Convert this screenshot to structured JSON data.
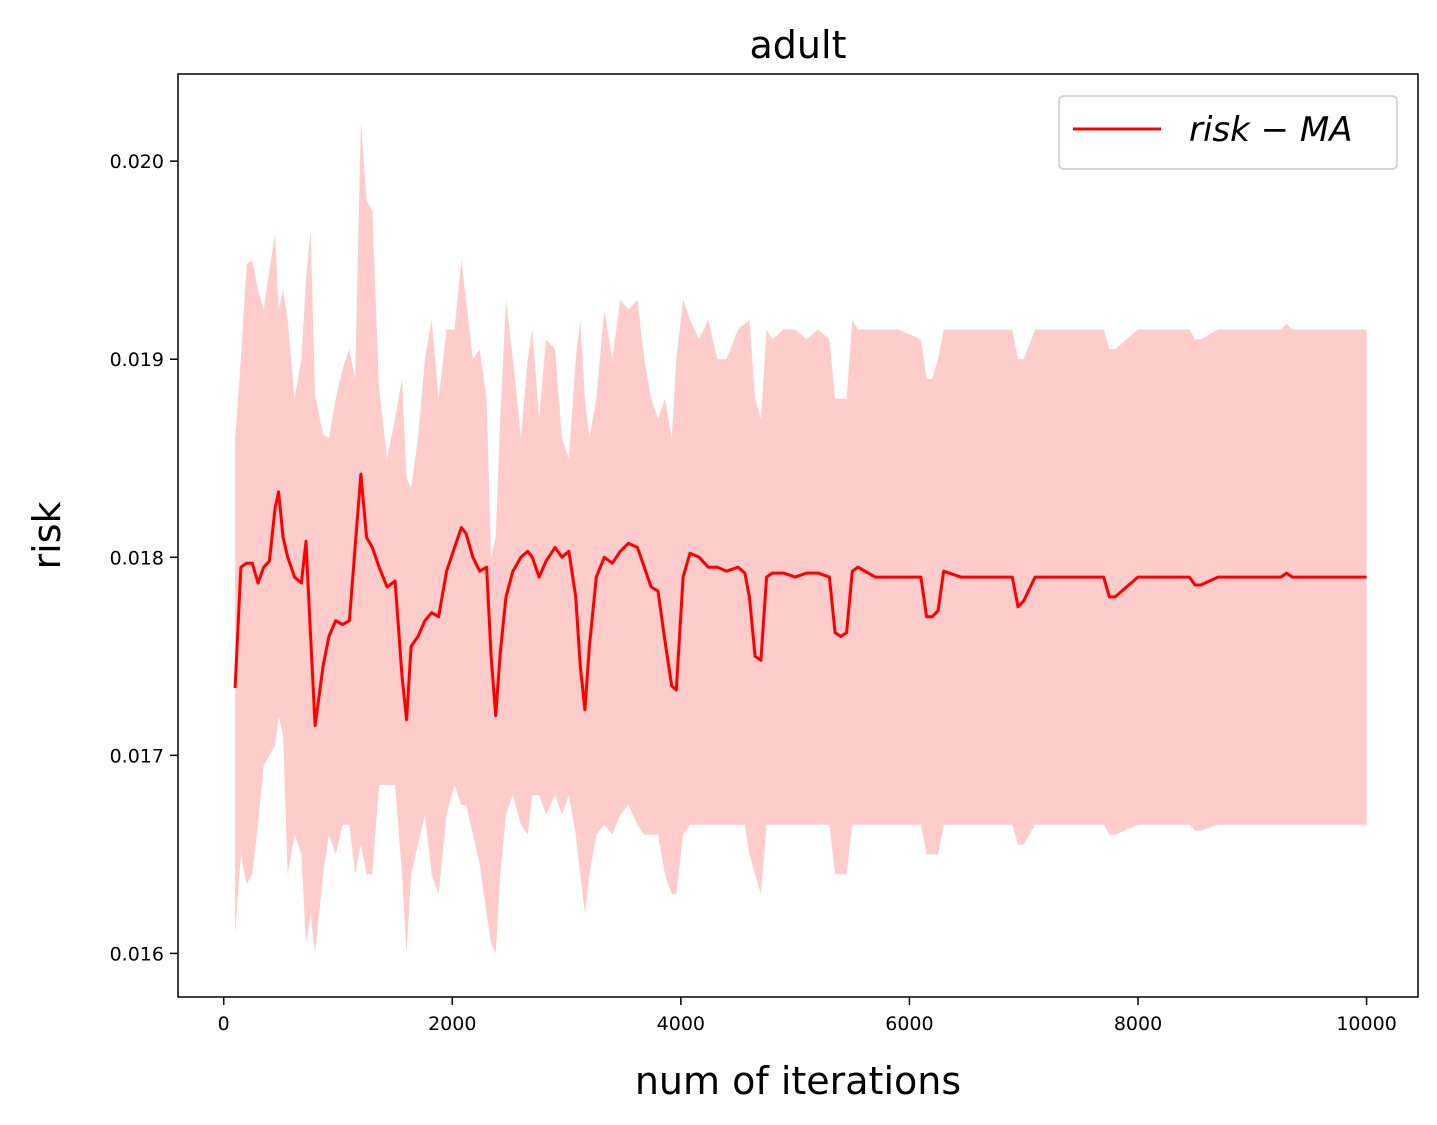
{
  "chart_data": {
    "type": "line",
    "title": "adult",
    "xlabel": "num of iterations",
    "ylabel": "risk",
    "xlim": [
      -400,
      10450
    ],
    "ylim": [
      0.01578,
      0.02044
    ],
    "xticks": [
      0,
      2000,
      4000,
      6000,
      8000,
      10000
    ],
    "xtick_labels": [
      "0",
      "2000",
      "4000",
      "6000",
      "8000",
      "10000"
    ],
    "yticks": [
      0.016,
      0.017,
      0.018,
      0.019,
      0.02
    ],
    "ytick_labels": [
      "0.016",
      "0.017",
      "0.018",
      "0.019",
      "0.020"
    ],
    "grid": false,
    "legend_position": "top-right",
    "series": [
      {
        "name": "risk − MA",
        "legend_label": "risk − MA",
        "color": "#ff0000",
        "band_color": "#ffcccc",
        "x": [
          100,
          150,
          200,
          250,
          300,
          350,
          400,
          450,
          480,
          520,
          560,
          620,
          680,
          720,
          760,
          800,
          870,
          920,
          980,
          1040,
          1100,
          1150,
          1200,
          1250,
          1300,
          1360,
          1430,
          1500,
          1560,
          1600,
          1640,
          1700,
          1760,
          1820,
          1880,
          1950,
          2020,
          2080,
          2120,
          2180,
          2240,
          2300,
          2340,
          2380,
          2420,
          2470,
          2530,
          2600,
          2660,
          2700,
          2760,
          2820,
          2900,
          2960,
          3020,
          3080,
          3120,
          3160,
          3200,
          3260,
          3330,
          3400,
          3470,
          3540,
          3620,
          3680,
          3740,
          3800,
          3860,
          3920,
          3960,
          4020,
          4080,
          4160,
          4240,
          4320,
          4400,
          4500,
          4560,
          4600,
          4650,
          4700,
          4750,
          4800,
          4900,
          5000,
          5100,
          5200,
          5300,
          5350,
          5400,
          5450,
          5500,
          5550,
          5700,
          5900,
          6100,
          6150,
          6200,
          6250,
          6300,
          6450,
          6700,
          6900,
          6950,
          7000,
          7100,
          7300,
          7600,
          7700,
          7750,
          7800,
          8000,
          8300,
          8450,
          8500,
          8550,
          8700,
          9000,
          9250,
          9300,
          9350,
          9500,
          10000
        ],
        "y": [
          0.01734,
          0.01795,
          0.01797,
          0.01797,
          0.01787,
          0.01795,
          0.01798,
          0.01825,
          0.01833,
          0.0181,
          0.018,
          0.0179,
          0.01787,
          0.01808,
          0.0176,
          0.01715,
          0.01745,
          0.0176,
          0.01768,
          0.01766,
          0.01768,
          0.01805,
          0.01842,
          0.0181,
          0.01805,
          0.01795,
          0.01785,
          0.01788,
          0.0174,
          0.01718,
          0.01755,
          0.0176,
          0.01768,
          0.01772,
          0.0177,
          0.01793,
          0.01805,
          0.01815,
          0.01812,
          0.018,
          0.01793,
          0.01795,
          0.0175,
          0.0172,
          0.01752,
          0.0178,
          0.01793,
          0.018,
          0.01803,
          0.018,
          0.0179,
          0.01798,
          0.01805,
          0.018,
          0.01803,
          0.0178,
          0.01745,
          0.01723,
          0.01755,
          0.0179,
          0.018,
          0.01797,
          0.01803,
          0.01807,
          0.01805,
          0.01795,
          0.01785,
          0.01783,
          0.01758,
          0.01735,
          0.01733,
          0.0179,
          0.01802,
          0.018,
          0.01795,
          0.01795,
          0.01793,
          0.01795,
          0.01792,
          0.0178,
          0.0175,
          0.01748,
          0.0179,
          0.01792,
          0.01792,
          0.0179,
          0.01792,
          0.01792,
          0.0179,
          0.01762,
          0.0176,
          0.01762,
          0.01793,
          0.01795,
          0.0179,
          0.0179,
          0.0179,
          0.0177,
          0.0177,
          0.01773,
          0.01793,
          0.0179,
          0.0179,
          0.0179,
          0.01775,
          0.01778,
          0.0179,
          0.0179,
          0.0179,
          0.0179,
          0.0178,
          0.0178,
          0.0179,
          0.0179,
          0.0179,
          0.01786,
          0.01786,
          0.0179,
          0.0179,
          0.0179,
          0.01792,
          0.0179,
          0.0179,
          0.0179
        ],
        "band_upper": [
          0.0186,
          0.019,
          0.01948,
          0.0195,
          0.01935,
          0.01925,
          0.01945,
          0.01963,
          0.01925,
          0.01935,
          0.0192,
          0.0188,
          0.019,
          0.0194,
          0.01965,
          0.01882,
          0.01862,
          0.0186,
          0.0188,
          0.01895,
          0.01905,
          0.0189,
          0.0202,
          0.0198,
          0.01975,
          0.01885,
          0.0185,
          0.0187,
          0.0189,
          0.0184,
          0.01835,
          0.0186,
          0.019,
          0.0192,
          0.0188,
          0.01915,
          0.01915,
          0.0195,
          0.0193,
          0.019,
          0.01905,
          0.0188,
          0.018,
          0.0181,
          0.0187,
          0.0193,
          0.019,
          0.0186,
          0.019,
          0.01915,
          0.0187,
          0.0191,
          0.01905,
          0.0186,
          0.0185,
          0.019,
          0.0192,
          0.0188,
          0.0186,
          0.0188,
          0.01925,
          0.019,
          0.0193,
          0.01925,
          0.0193,
          0.019,
          0.0188,
          0.0187,
          0.0188,
          0.0186,
          0.019,
          0.0193,
          0.0192,
          0.0191,
          0.0192,
          0.019,
          0.019,
          0.01915,
          0.01918,
          0.0192,
          0.0188,
          0.0187,
          0.01915,
          0.0191,
          0.01915,
          0.01915,
          0.0191,
          0.01915,
          0.0191,
          0.0188,
          0.0188,
          0.0188,
          0.0192,
          0.01915,
          0.01915,
          0.01915,
          0.0191,
          0.0189,
          0.0189,
          0.019,
          0.01915,
          0.01915,
          0.01915,
          0.01915,
          0.019,
          0.019,
          0.01915,
          0.01915,
          0.01915,
          0.01915,
          0.01905,
          0.01905,
          0.01915,
          0.01915,
          0.01915,
          0.0191,
          0.0191,
          0.01915,
          0.01915,
          0.01915,
          0.01918,
          0.01915,
          0.01915,
          0.01915
        ],
        "band_lower": [
          0.0161,
          0.0165,
          0.01635,
          0.0164,
          0.01665,
          0.01695,
          0.017,
          0.01705,
          0.0172,
          0.0171,
          0.0164,
          0.0166,
          0.0165,
          0.01605,
          0.0162,
          0.016,
          0.0164,
          0.0166,
          0.0165,
          0.01665,
          0.01665,
          0.0164,
          0.01655,
          0.0164,
          0.0164,
          0.01685,
          0.01685,
          0.01685,
          0.0164,
          0.016,
          0.0164,
          0.01655,
          0.0167,
          0.0164,
          0.0163,
          0.0167,
          0.01685,
          0.01675,
          0.01675,
          0.0166,
          0.01645,
          0.0162,
          0.01605,
          0.016,
          0.0164,
          0.0167,
          0.0168,
          0.01665,
          0.0166,
          0.0168,
          0.0168,
          0.0167,
          0.0168,
          0.0167,
          0.0168,
          0.0166,
          0.0164,
          0.0162,
          0.0164,
          0.0166,
          0.01665,
          0.0166,
          0.0167,
          0.01675,
          0.01665,
          0.0166,
          0.0166,
          0.0166,
          0.0164,
          0.0163,
          0.0163,
          0.0166,
          0.01665,
          0.01665,
          0.01665,
          0.01665,
          0.01665,
          0.01665,
          0.01665,
          0.0165,
          0.0164,
          0.0163,
          0.01665,
          0.01665,
          0.01665,
          0.01665,
          0.01665,
          0.01665,
          0.01665,
          0.0164,
          0.0164,
          0.0164,
          0.01665,
          0.01665,
          0.01665,
          0.01665,
          0.01665,
          0.0165,
          0.0165,
          0.0165,
          0.01665,
          0.01665,
          0.01665,
          0.01665,
          0.01655,
          0.01655,
          0.01665,
          0.01665,
          0.01665,
          0.01665,
          0.0166,
          0.0166,
          0.01665,
          0.01665,
          0.01665,
          0.01662,
          0.01662,
          0.01665,
          0.01665,
          0.01665,
          0.01665,
          0.01665,
          0.01665,
          0.01665
        ]
      }
    ]
  }
}
